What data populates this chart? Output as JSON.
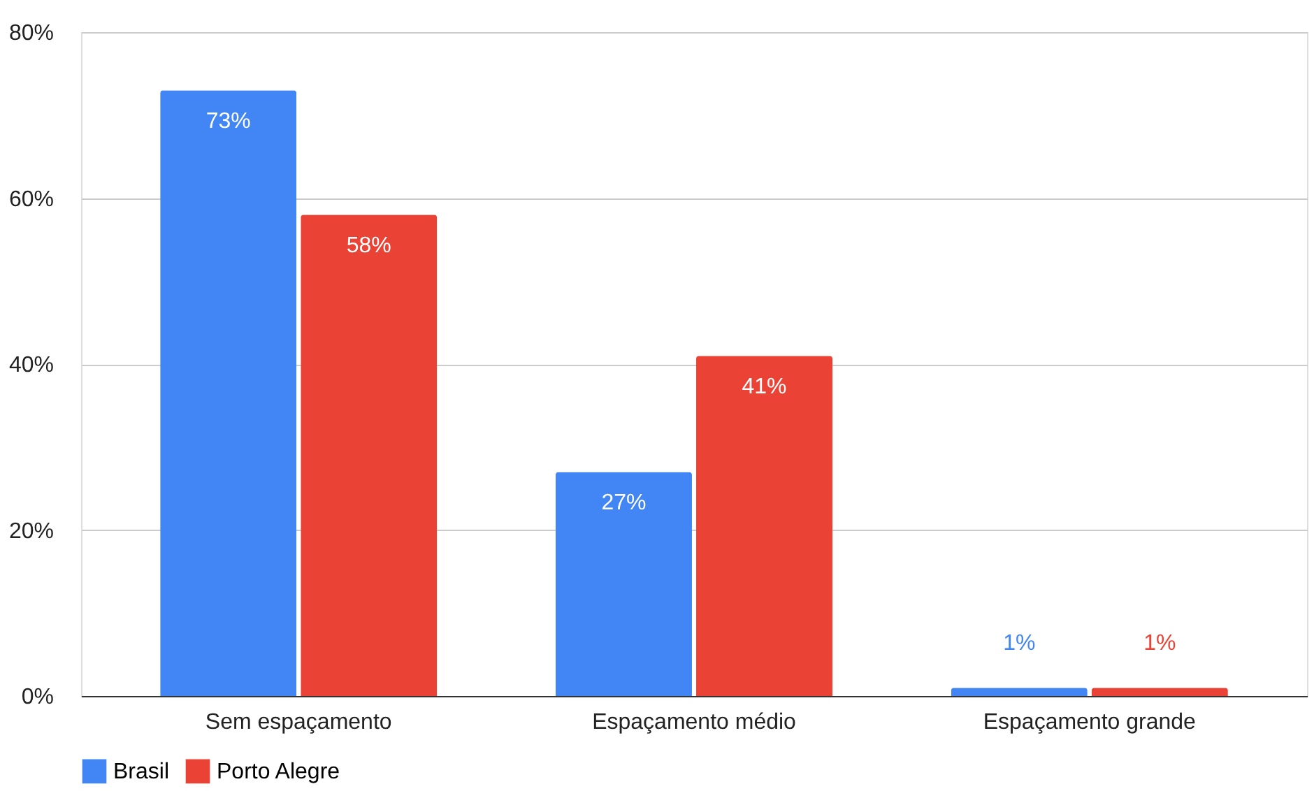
{
  "chart_data": {
    "type": "bar",
    "categories": [
      "Sem espaçamento",
      "Espaçamento médio",
      "Espaçamento grande"
    ],
    "series": [
      {
        "name": "Brasil",
        "color": "#4285f4",
        "values": [
          73,
          27,
          1
        ],
        "value_labels": [
          "73%",
          "27%",
          "1%"
        ]
      },
      {
        "name": "Porto Alegre",
        "color": "#ea4335",
        "values": [
          58,
          41,
          1
        ],
        "value_labels": [
          "58%",
          "41%",
          "1%"
        ]
      }
    ],
    "ylim": [
      0,
      80
    ],
    "yticks": [
      {
        "value": 0,
        "label": "0%"
      },
      {
        "value": 20,
        "label": "20%"
      },
      {
        "value": 40,
        "label": "40%"
      },
      {
        "value": 60,
        "label": "60%"
      },
      {
        "value": 80,
        "label": "80%"
      }
    ],
    "grid": "y",
    "legend": "bottom"
  }
}
